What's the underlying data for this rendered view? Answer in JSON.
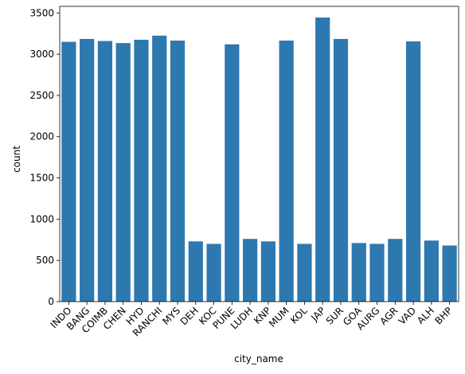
{
  "chart_data": {
    "type": "bar",
    "xlabel": "city_name",
    "ylabel": "count",
    "ylim": [
      0,
      3580
    ],
    "yticks": [
      0,
      500,
      1000,
      1500,
      2000,
      2500,
      3000,
      3500
    ],
    "categories": [
      "INDO",
      "BANG",
      "COIMB",
      "CHEN",
      "HYD",
      "RANCHI",
      "MYS",
      "DEH",
      "KOC",
      "PUNE",
      "LUDH",
      "KNP",
      "MUM",
      "KOL",
      "JAP",
      "SUR",
      "GOA",
      "AURG",
      "AGR",
      "VAD",
      "ALH",
      "BHP"
    ],
    "values": [
      3150,
      3185,
      3160,
      3135,
      3175,
      3225,
      3165,
      730,
      700,
      3120,
      760,
      730,
      3165,
      700,
      3445,
      3185,
      710,
      700,
      760,
      3155,
      740,
      680
    ],
    "bar_color": "#2e78b0",
    "grid": false,
    "legend": "none"
  }
}
